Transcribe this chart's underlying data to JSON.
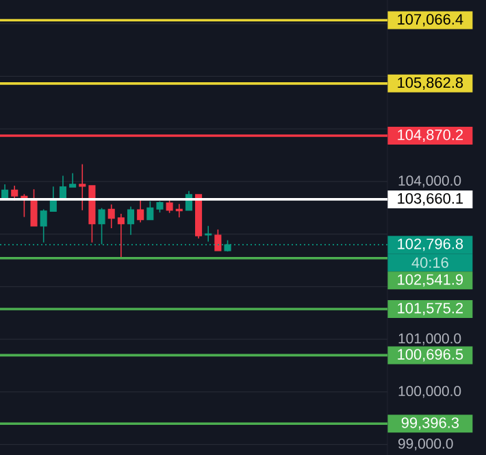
{
  "chart_data": {
    "type": "candlestick",
    "categories": [
      null,
      null,
      null,
      null,
      null,
      null,
      null,
      null,
      null,
      null,
      null,
      null,
      null,
      null,
      null,
      null,
      null,
      null,
      null,
      null,
      null,
      null,
      null,
      null,
      null,
      null,
      null,
      null,
      null,
      null,
      null,
      null,
      null,
      null,
      null,
      null,
      null,
      null,
      null,
      null
    ],
    "ohlc": [
      [
        103682,
        103946,
        103682,
        103835
      ],
      [
        103835,
        103920,
        103640,
        103725
      ],
      [
        103716,
        103759,
        103325,
        103665
      ],
      [
        103665,
        103852,
        103155,
        103155
      ],
      [
        103155,
        103470,
        102840,
        103436
      ],
      [
        103436,
        103903,
        103436,
        103665
      ],
      [
        103665,
        104107,
        103665,
        103895
      ],
      [
        103895,
        104158,
        103895,
        103946
      ],
      [
        103946,
        104328,
        103453,
        103912
      ],
      [
        103920,
        103920,
        102840,
        103197
      ],
      [
        103197,
        103495,
        102806,
        103461
      ],
      [
        103470,
        103563,
        103112,
        103300
      ],
      [
        103308,
        103385,
        102560,
        103197
      ],
      [
        103197,
        103521,
        102985,
        103461
      ],
      [
        103461,
        103674,
        103223,
        103274
      ],
      [
        103274,
        103623,
        103274,
        103495
      ],
      [
        103478,
        103623,
        103410,
        103597
      ],
      [
        103589,
        103640,
        103402,
        103453
      ],
      [
        103470,
        103572,
        103317,
        103444
      ],
      [
        103453,
        103818,
        103453,
        103750
      ],
      [
        103750,
        103750,
        102917,
        102968
      ],
      [
        102985,
        103155,
        102857,
        103002
      ],
      [
        102977,
        103087,
        102687,
        102687
      ],
      [
        102687,
        102883,
        102670,
        102796.8
      ],
      null,
      null,
      null,
      null,
      null,
      null,
      null,
      null,
      null,
      null,
      null,
      null,
      null,
      null,
      null,
      null
    ],
    "colors": [
      "#089981",
      "#f23645",
      "#f23645",
      "#f23645",
      "#089981",
      "#089981",
      "#089981",
      "#089981",
      "#f23645",
      "#f23645",
      "#089981",
      "#f23645",
      "#f23645",
      "#089981",
      "#f23645",
      "#089981",
      "#089981",
      "#f23645",
      "#f23645",
      "#089981",
      "#f23645",
      "#089981",
      "#f23645",
      "#089981",
      null,
      null,
      null,
      null,
      null,
      null,
      null,
      null,
      null,
      null,
      null,
      null,
      null,
      null,
      null,
      null
    ],
    "ylim": [
      98800,
      107450
    ],
    "yticks": [
      {
        "value": 99000,
        "label": "99,000.0"
      },
      {
        "value": 100000,
        "label": "100,000.0"
      },
      {
        "value": 101000,
        "label": "101,000.0"
      },
      {
        "value": 102000,
        "label": null
      },
      {
        "value": 103000,
        "label": null
      },
      {
        "value": 104000,
        "label": "104,000.0"
      },
      {
        "value": 105000,
        "label": null
      },
      {
        "value": 106000,
        "label": null
      },
      {
        "value": 107000,
        "label": null
      }
    ],
    "grid": "y",
    "ref_lines": [
      {
        "axis": "y",
        "value": 107066.4,
        "label": "107,066.4",
        "color": "#e8d534"
      },
      {
        "axis": "y",
        "value": 105862.8,
        "label": "105,862.8",
        "color": "#e8d534"
      },
      {
        "axis": "y",
        "value": 104870.2,
        "label": "104,870.2",
        "color": "#f23645"
      },
      {
        "axis": "y",
        "value": 103660.1,
        "label": "103,660.1",
        "color": "#ffffff"
      },
      {
        "axis": "y",
        "value": 102796.8,
        "label": "102,796.8",
        "color": "#089981",
        "line_style": "dotted"
      },
      {
        "axis": "y",
        "value": 102541.9,
        "label": "102,541.9",
        "color": "#4caf50"
      },
      {
        "axis": "y",
        "value": 101575.2,
        "label": "101,575.2",
        "color": "#4caf50"
      },
      {
        "axis": "y",
        "value": 100696.5,
        "label": "100,696.5",
        "color": "#4caf50"
      },
      {
        "axis": "y",
        "value": 99396.3,
        "label": "99,396.3",
        "color": "#4caf50"
      }
    ],
    "annotations": [
      "40:16"
    ]
  }
}
